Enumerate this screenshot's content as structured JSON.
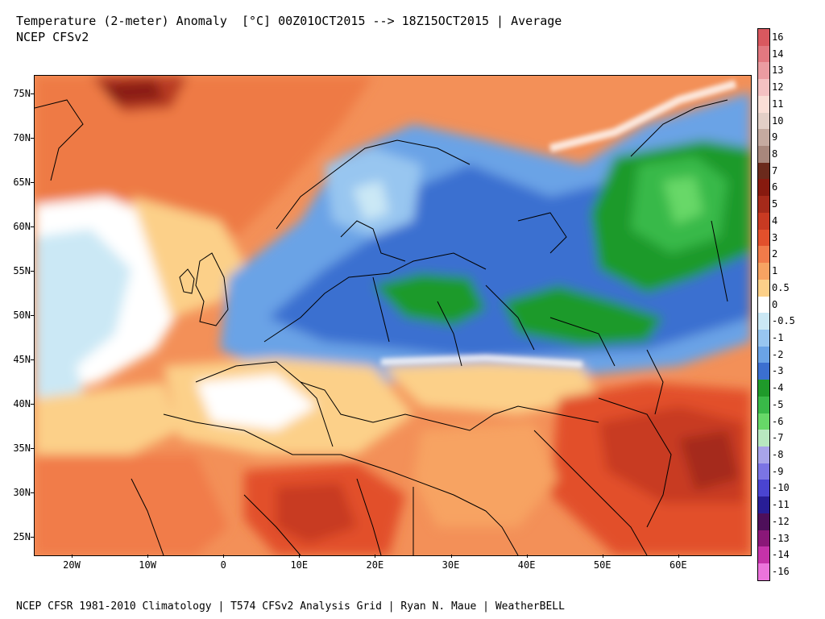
{
  "header": {
    "title": "Temperature (2-meter) Anomaly  [°C] 00Z01OCT2015 --> 18Z15OCT2015 | Average",
    "subtitle": "NCEP CFSv2"
  },
  "footer": {
    "credits": "NCEP CFSR 1981-2010 Climatology | T574 CFSv2 Analysis Grid | Ryan N. Maue | WeatherBELL"
  },
  "map": {
    "lat_labels": [
      "75N",
      "70N",
      "65N",
      "60N",
      "55N",
      "50N",
      "45N",
      "40N",
      "35N",
      "30N",
      "25N"
    ],
    "lon_labels": [
      "20W",
      "10W",
      "0",
      "10E",
      "20E",
      "30E",
      "40E",
      "50E",
      "60E"
    ]
  },
  "colorbar": {
    "labels": [
      "16",
      "14",
      "13",
      "12",
      "11",
      "10",
      "9",
      "8",
      "7",
      "6",
      "5",
      "4",
      "3",
      "2",
      "1",
      "0.5",
      "0",
      "-0.5",
      "-1",
      "-2",
      "-3",
      "-4",
      "-5",
      "-6",
      "-7",
      "-8",
      "-9",
      "-10",
      "-11",
      "-12",
      "-13",
      "-14",
      "-16"
    ],
    "colors": [
      "#d9585f",
      "#e27880",
      "#eb9ca1",
      "#f4c1c2",
      "#faded6",
      "#e3cfc7",
      "#c5aaa0",
      "#a8877c",
      "#6b2a1c",
      "#871a0f",
      "#a52a1a",
      "#c83a22",
      "#e2502c",
      "#f17b4a",
      "#f7a362",
      "#fcd089",
      "#ffffff",
      "#cbe8f5",
      "#98c6f0",
      "#6aa3e6",
      "#3b6fd0",
      "#1f9a2a",
      "#39b948",
      "#67d868",
      "#b8e8c0",
      "#a8a4e9",
      "#7b74e4",
      "#4a44d0",
      "#281d96",
      "#4e0f5a",
      "#8a1778",
      "#c532a9",
      "#ec74dc"
    ]
  }
}
